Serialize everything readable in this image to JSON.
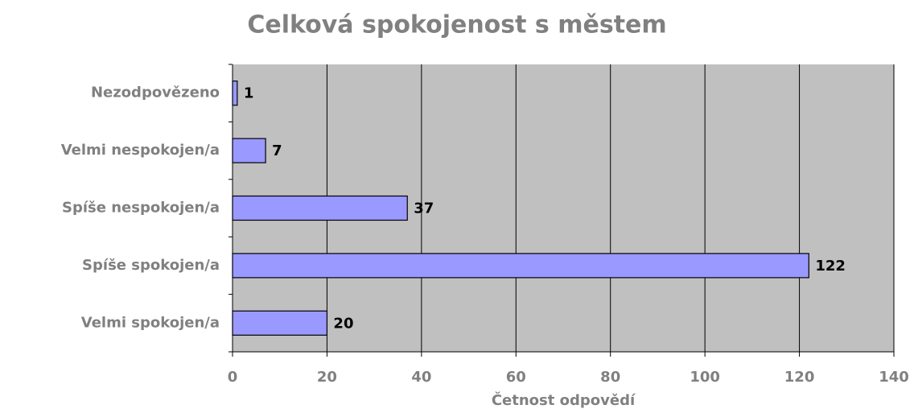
{
  "chart_data": {
    "type": "bar",
    "orientation": "horizontal",
    "title": "Celková spokojenost s městem",
    "x_label": "Četnost odpovědí",
    "categories": [
      "Nezodpovězeno",
      "Velmi nespokojen/a",
      "Spíše nespokojen/a",
      "Spíše spokojen/a",
      "Velmi spokojen/a"
    ],
    "values": [
      1,
      7,
      37,
      122,
      20
    ],
    "color": "#9999ff",
    "xlim": [
      0,
      140
    ],
    "xticks": [
      0,
      20,
      40,
      60,
      80,
      100,
      120,
      140
    ],
    "grid": true
  }
}
